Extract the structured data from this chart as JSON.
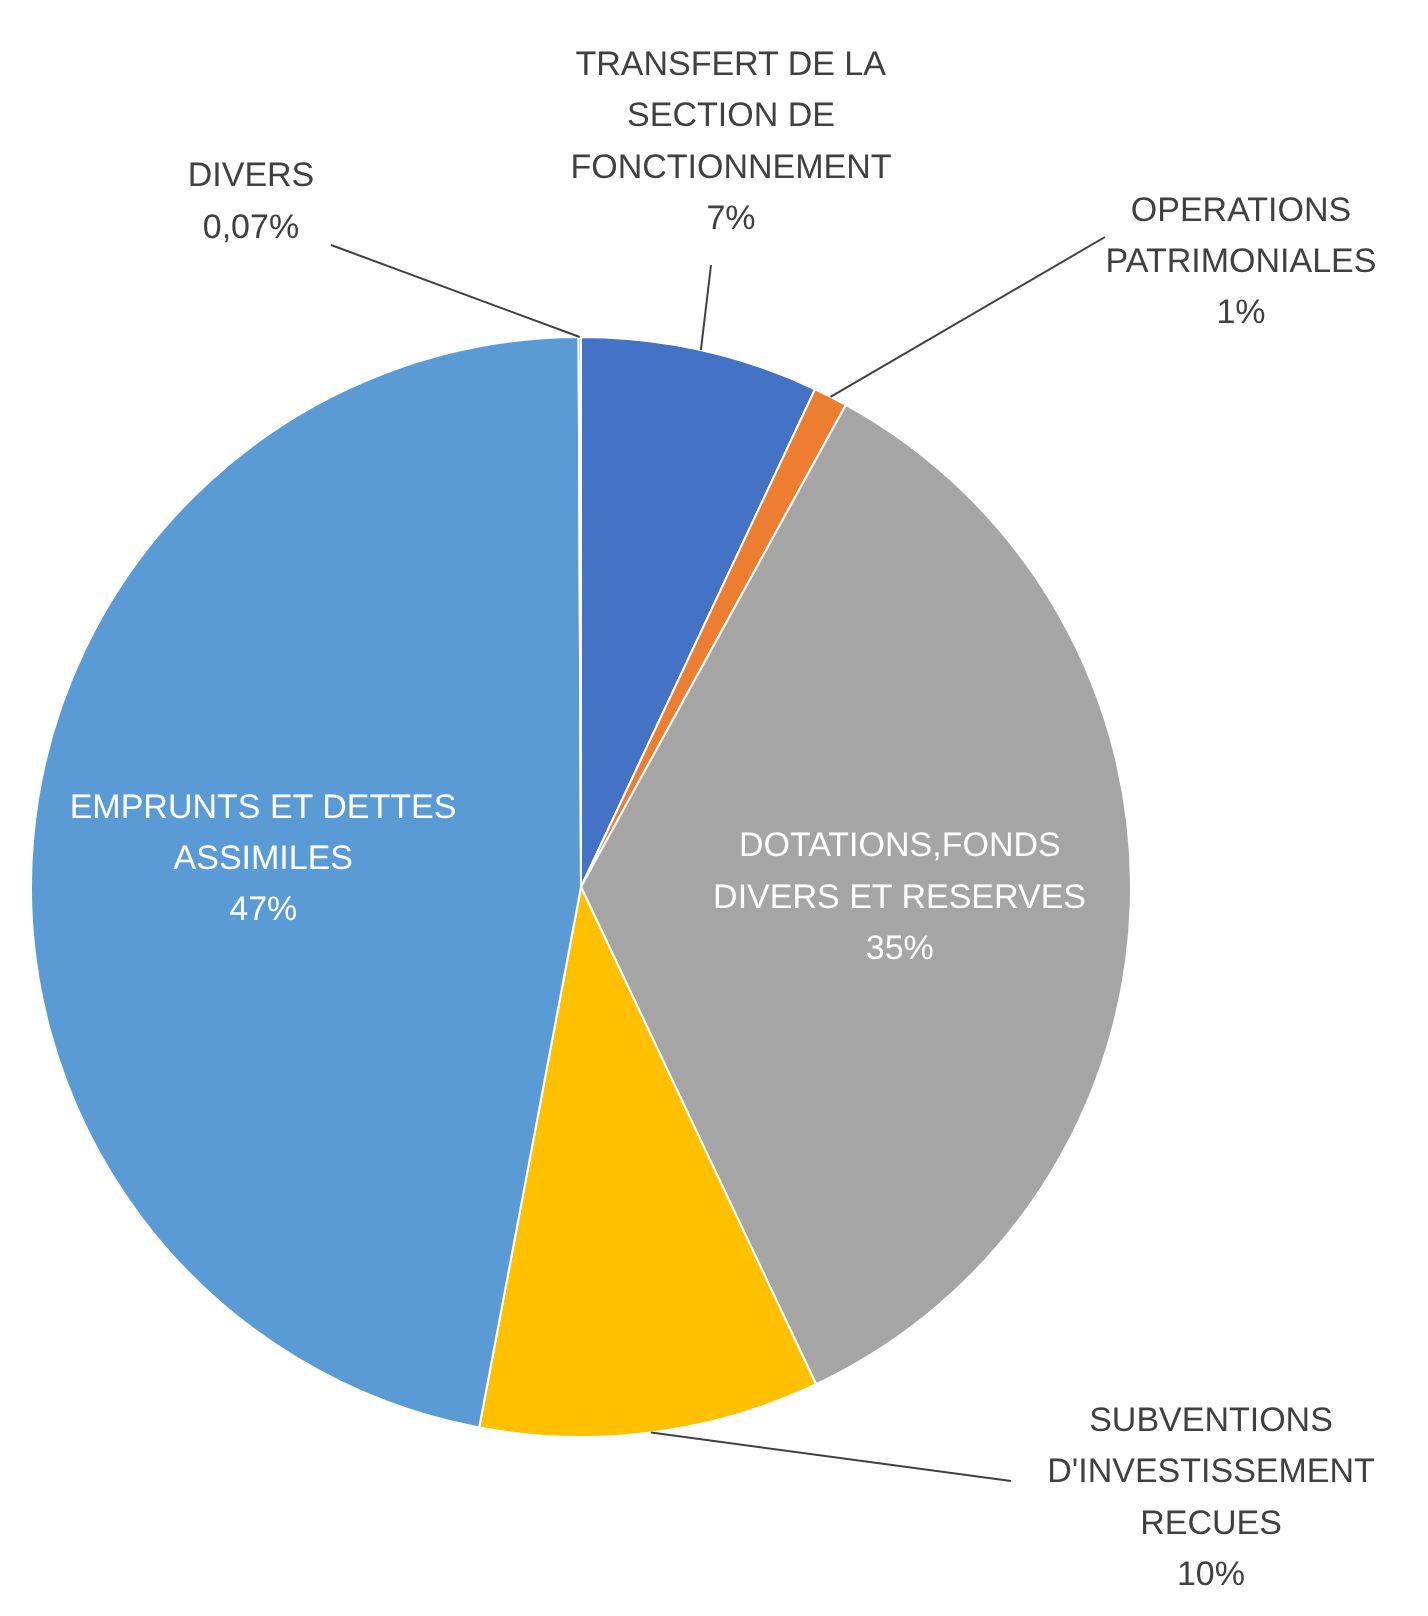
{
  "chart_data": {
    "type": "pie",
    "categories": [
      "TRANSFERT DE LA\nSECTION DE\nFONCTIONNEMENT",
      "OPERATIONS\nPATRIMONIALES",
      "DOTATIONS,FONDS\nDIVERS ET RESERVES",
      "SUBVENTIONS\nD'INVESTISSEMENT\nRECUES",
      "EMPRUNTS ET DETTES\nASSIMILES",
      "DIVERS"
    ],
    "values": [
      7,
      1,
      35,
      10,
      47,
      0.07
    ],
    "value_labels": [
      "7%",
      "1%",
      "35%",
      "10%",
      "47%",
      "0,07%"
    ],
    "colors": [
      "#4472c4",
      "#ed7d31",
      "#a5a5a5",
      "#ffc000",
      "#5b9bd5",
      "#70ad47"
    ]
  }
}
